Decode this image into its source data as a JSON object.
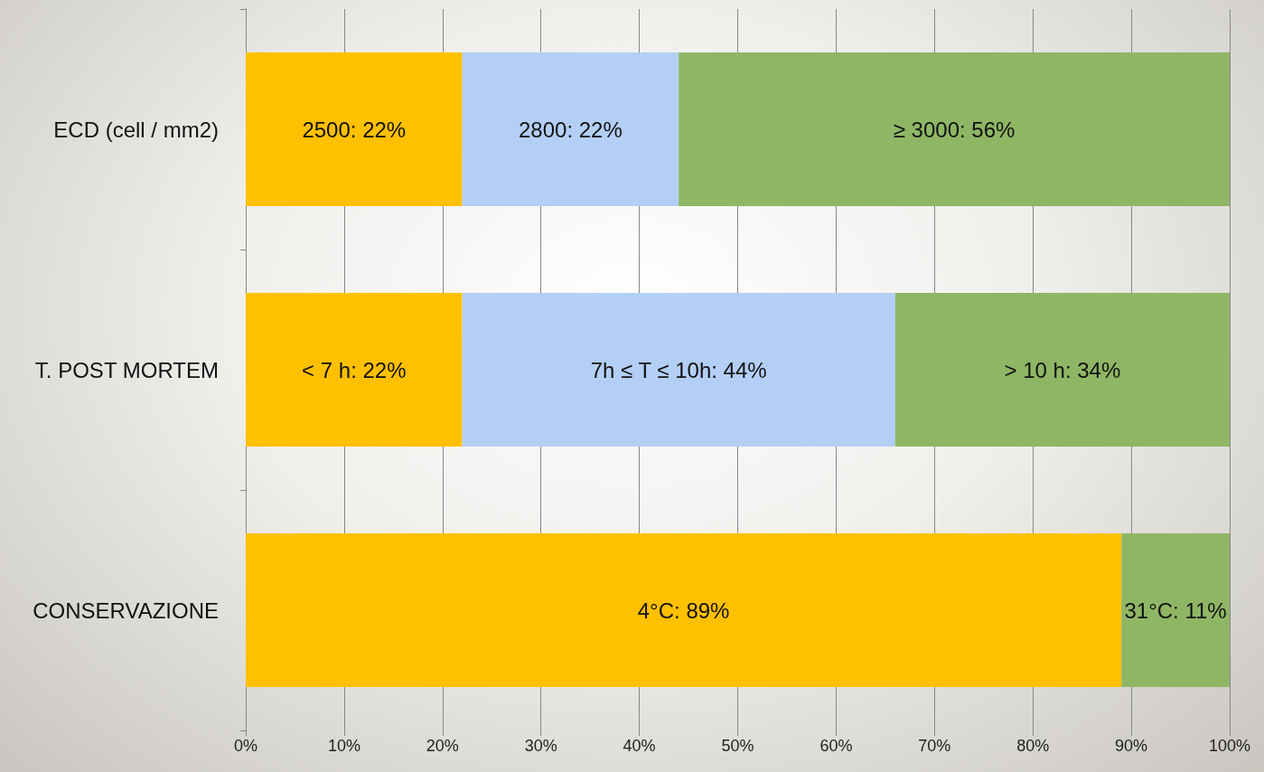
{
  "chart_data": {
    "type": "bar",
    "orientation": "horizontal",
    "stacked": true,
    "categories": [
      "ECD (cell / mm2)",
      "T. POST MORTEM",
      "CONSERVAZIONE"
    ],
    "series": [
      {
        "color": "#ffc000",
        "values": [
          22,
          22,
          89
        ],
        "value_labels": [
          "2500: 22%",
          "< 7 h: 22%",
          "4°C: 89%"
        ]
      },
      {
        "color": "#b4cff5",
        "values": [
          22,
          44,
          null
        ],
        "value_labels": [
          "2800: 22%",
          "7h ≤ T ≤ 10h: 44%",
          null
        ]
      },
      {
        "color": "#8fb665",
        "values": [
          56,
          34,
          11
        ],
        "value_labels": [
          "≥ 3000: 56%",
          "> 10 h: 34%",
          "31°C: 11%"
        ]
      }
    ],
    "xlim": [
      0,
      100
    ],
    "xticks": [
      {
        "value": 0,
        "label": "0%"
      },
      {
        "value": 10,
        "label": "10%"
      },
      {
        "value": 20,
        "label": "20%"
      },
      {
        "value": 30,
        "label": "30%"
      },
      {
        "value": 40,
        "label": "40%"
      },
      {
        "value": 50,
        "label": "50%"
      },
      {
        "value": 60,
        "label": "60%"
      },
      {
        "value": 70,
        "label": "70%"
      },
      {
        "value": 80,
        "label": "80%"
      },
      {
        "value": 90,
        "label": "90%"
      },
      {
        "value": 100,
        "label": "100%"
      }
    ],
    "grid": "x"
  }
}
